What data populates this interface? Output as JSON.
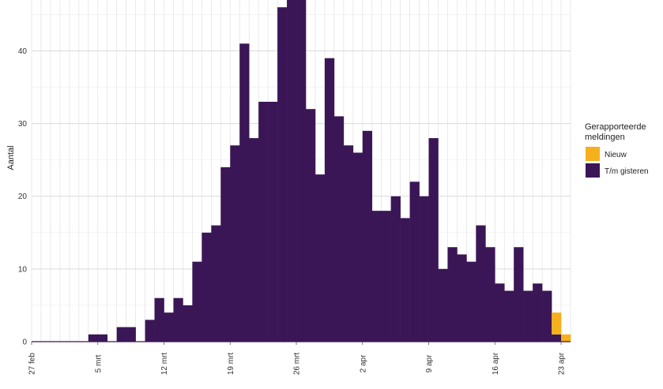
{
  "chart_data": {
    "type": "bar",
    "stacked": true,
    "ylabel": "Aantal",
    "xlabel": "",
    "ylim": [
      0,
      47
    ],
    "yticks": [
      0,
      10,
      20,
      30,
      40
    ],
    "grid": true,
    "legend_position": "right",
    "legend_title_lines": [
      "Gerapporteerde",
      "meldingen"
    ],
    "x_ticks": [
      {
        "label": "27 feb",
        "day": 0
      },
      {
        "label": "5 mrt",
        "day": 7
      },
      {
        "label": "12 mrt",
        "day": 14
      },
      {
        "label": "19 mrt",
        "day": 21
      },
      {
        "label": "26 mrt",
        "day": 28
      },
      {
        "label": "2 apr",
        "day": 35
      },
      {
        "label": "9 apr",
        "day": 42
      },
      {
        "label": "16 apr",
        "day": 49
      },
      {
        "label": "23 apr",
        "day": 56
      }
    ],
    "categories": [
      "27 feb",
      "28 feb",
      "29 feb",
      "1 mrt",
      "2 mrt",
      "3 mrt",
      "4 mrt",
      "5 mrt",
      "6 mrt",
      "7 mrt",
      "8 mrt",
      "9 mrt",
      "10 mrt",
      "11 mrt",
      "12 mrt",
      "13 mrt",
      "14 mrt",
      "15 mrt",
      "16 mrt",
      "17 mrt",
      "18 mrt",
      "19 mrt",
      "20 mrt",
      "21 mrt",
      "22 mrt",
      "23 mrt",
      "24 mrt",
      "25 mrt",
      "26 mrt",
      "27 mrt",
      "28 mrt",
      "29 mrt",
      "30 mrt",
      "31 mrt",
      "1 apr",
      "2 apr",
      "3 apr",
      "4 apr",
      "5 apr",
      "6 apr",
      "7 apr",
      "8 apr",
      "9 apr",
      "10 apr",
      "11 apr",
      "12 apr",
      "13 apr",
      "14 apr",
      "15 apr",
      "16 apr",
      "17 apr",
      "18 apr",
      "19 apr",
      "20 apr",
      "21 apr",
      "22 apr",
      "23 apr"
    ],
    "series": [
      {
        "name": "T/m gisteren",
        "color": "#3b1656",
        "values": [
          0,
          0,
          0,
          0,
          0,
          0,
          1,
          1,
          0,
          2,
          2,
          0,
          3,
          6,
          4,
          6,
          5,
          11,
          15,
          16,
          24,
          27,
          41,
          28,
          33,
          33,
          46,
          47,
          47,
          32,
          23,
          39,
          31,
          27,
          26,
          29,
          18,
          18,
          20,
          17,
          22,
          20,
          28,
          10,
          13,
          12,
          11,
          16,
          13,
          8,
          7,
          13,
          7,
          8,
          7,
          1,
          0
        ]
      },
      {
        "name": "Nieuw",
        "color": "#f6b01e",
        "values": [
          0,
          0,
          0,
          0,
          0,
          0,
          0,
          0,
          0,
          0,
          0,
          0,
          0,
          0,
          0,
          0,
          0,
          0,
          0,
          0,
          0,
          0,
          0,
          0,
          0,
          0,
          0,
          0,
          0,
          0,
          0,
          0,
          0,
          0,
          0,
          0,
          0,
          0,
          0,
          0,
          0,
          0,
          0,
          0,
          0,
          0,
          0,
          0,
          0,
          0,
          0,
          0,
          0,
          0,
          0,
          3,
          1
        ]
      }
    ]
  }
}
